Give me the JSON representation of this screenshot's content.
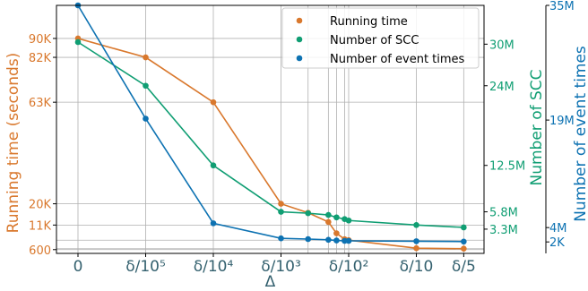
{
  "chart_data": {
    "type": "line",
    "xlabel": "Δ",
    "x_ticks": [
      "0",
      "δ/10⁵",
      "δ/10⁴",
      "δ/10³",
      "δ/10²",
      "δ/10",
      "δ/5"
    ],
    "x_positions": [
      0,
      1,
      2,
      3,
      3.4,
      3.7,
      3.82,
      3.94,
      4.0,
      5.0,
      5.7
    ],
    "axes": [
      {
        "side": "left",
        "label": "Running time (seconds)",
        "color": "#d9782d",
        "ylim": [
          -1000,
          104000
        ],
        "tick_values": [
          600,
          11000,
          20000,
          63000,
          82000,
          90000
        ],
        "tick_labels": [
          "600",
          "11K",
          "20K",
          "63K",
          "82K",
          "90K"
        ]
      },
      {
        "side": "right",
        "label": "Number of SCC",
        "color": "#109e73",
        "ylim": [
          -0.2,
          35.6
        ],
        "tick_values": [
          3.3,
          5.8,
          12.5,
          24,
          30
        ],
        "tick_labels": [
          "3.3M",
          "5.8M",
          "12.5M",
          "24M",
          "30M"
        ]
      },
      {
        "side": "right-outer",
        "label": "Number of event times",
        "color": "#0d72b2",
        "ylim": [
          0.4,
          35.0
        ],
        "tick_values": [
          2,
          4,
          19,
          35
        ],
        "tick_labels": [
          "2K",
          "4M",
          "19M",
          "35M"
        ]
      }
    ],
    "series": [
      {
        "name": "Running time",
        "axis": "left",
        "color": "#d9782d",
        "values": [
          90000,
          82000,
          63000,
          20000,
          16200,
          12300,
          7500,
          5000,
          4600,
          1200,
          1000
        ]
      },
      {
        "name": "Number of SCC",
        "axis": "right",
        "color": "#109e73",
        "values": [
          30.3,
          24.0,
          12.5,
          5.8,
          5.6,
          5.35,
          5.0,
          4.75,
          4.55,
          3.9,
          3.55
        ]
      },
      {
        "name": "Number of event times",
        "axis": "right-outer",
        "color": "#0d72b2",
        "values": [
          35.0,
          19.2,
          4.6,
          2.5,
          2.4,
          2.3,
          2.2,
          2.15,
          2.15,
          2.1,
          2.05
        ]
      }
    ],
    "extra_vertical_grid": [
      3.4,
      3.7,
      3.82,
      3.94
    ],
    "extra_horizontal_grid": [
      1000,
      4600
    ],
    "grid": true,
    "legend": "top-right"
  }
}
